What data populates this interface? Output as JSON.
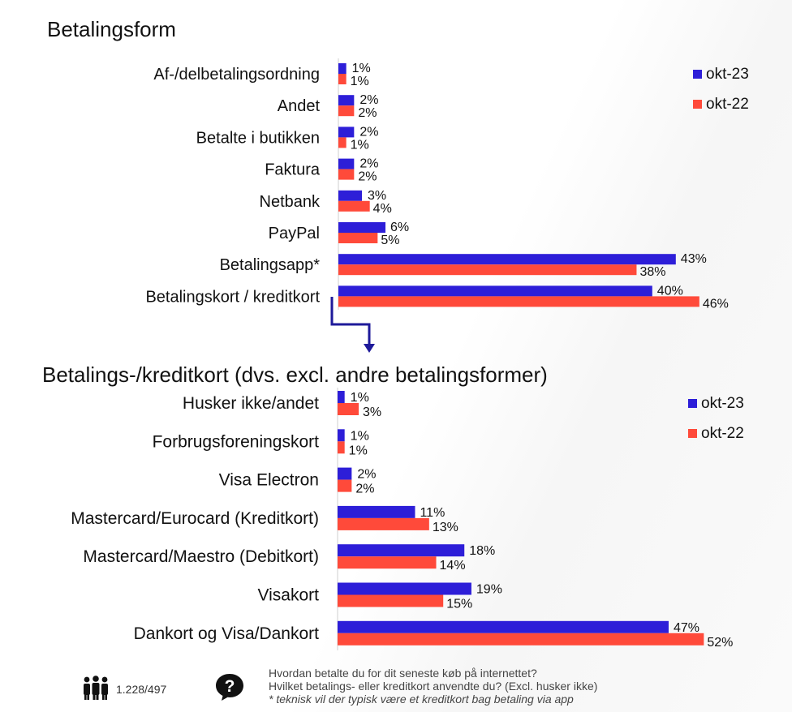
{
  "chart_data": [
    {
      "type": "bar",
      "orientation": "horizontal",
      "title": "Betalingsform",
      "categories": [
        "Af-/delbetalingsordning",
        "Andet",
        "Betalte i butikken",
        "Faktura",
        "Netbank",
        "PayPal",
        "Betalingsapp*",
        "Betalingskort / kreditkort"
      ],
      "series": [
        {
          "name": "okt-23",
          "color": "#2d1ed8",
          "values": [
            1,
            2,
            2,
            2,
            3,
            6,
            43,
            40
          ],
          "labels": [
            "1%",
            "2%",
            "2%",
            "2%",
            "3%",
            "6%",
            "43%",
            "40%"
          ]
        },
        {
          "name": "okt-22",
          "color": "#ff4a3a",
          "values": [
            1,
            2,
            1,
            2,
            4,
            5,
            38,
            46
          ],
          "labels": [
            "1%",
            "2%",
            "1%",
            "2%",
            "4%",
            "5%",
            "38%",
            "46%"
          ]
        }
      ],
      "xlim": [
        0,
        50
      ],
      "grid": false,
      "legend": "top-right"
    },
    {
      "type": "bar",
      "orientation": "horizontal",
      "title": "Betalings-/kreditkort (dvs. excl. andre betalingsformer)",
      "categories": [
        "Husker ikke/andet",
        "Forbrugsforeningskort",
        "Visa Electron",
        "Mastercard/Eurocard (Kreditkort)",
        "Mastercard/Maestro (Debitkort)",
        "Visakort",
        "Dankort og Visa/Dankort"
      ],
      "series": [
        {
          "name": "okt-23",
          "color": "#2d1ed8",
          "values": [
            1,
            1,
            2,
            11,
            18,
            19,
            47
          ],
          "labels": [
            "1%",
            "1%",
            "2%",
            "11%",
            "18%",
            "19%",
            "47%"
          ]
        },
        {
          "name": "okt-22",
          "color": "#ff4a3a",
          "values": [
            3,
            1,
            2,
            13,
            14,
            15,
            52
          ],
          "labels": [
            "3%",
            "1%",
            "2%",
            "13%",
            "14%",
            "15%",
            "52%"
          ]
        }
      ],
      "xlim": [
        0,
        56
      ],
      "grid": false,
      "legend": "top-right"
    }
  ],
  "footer": {
    "icon_people": "people-group-icon",
    "icon_question": "question-bubble-icon",
    "sample": "1.228/497",
    "question1": "Hvordan betalte du for dit seneste køb på internettet?",
    "question2": "Hvilket betalings- eller kreditkort anvendte du? (Excl. husker ikke)",
    "note": "* teknisk vil der typisk være et kreditkort bag betaling via app"
  }
}
